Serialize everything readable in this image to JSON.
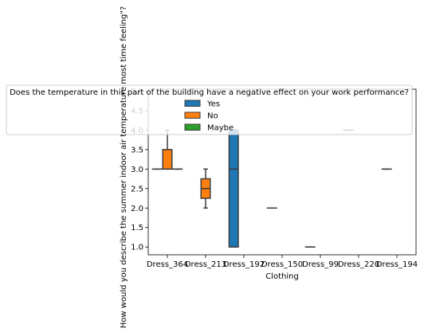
{
  "chart_data": {
    "type": "box",
    "title": "",
    "xlabel": "Clothing",
    "ylabel": "How would you describe the summer indoor air temperature most time feeling\"?",
    "ylim": [
      0.8,
      5.05
    ],
    "yticks": [
      1.0,
      1.5,
      2.0,
      2.5,
      3.0,
      3.5,
      4.0,
      4.5,
      5.0
    ],
    "ytick_labels": [
      "1.0",
      "1.5",
      "2.0",
      "2.5",
      "3.0",
      "3.5",
      "4.0",
      "4.5",
      "5.0"
    ],
    "categories": [
      "Dress_364",
      "Dress_213",
      "Dress_192",
      "Dress_150",
      "Dress_99",
      "Dress_220",
      "Dress_194"
    ],
    "legend": {
      "title": "Does the temperature in this part of the building have a negative effect on your work performance?",
      "placement": "upper-center",
      "entries": [
        "Yes",
        "No",
        "Maybe"
      ]
    },
    "series": [
      {
        "name": "Yes",
        "color": "#1f77b4"
      },
      {
        "name": "No",
        "color": "#ff7f0e"
      },
      {
        "name": "Maybe",
        "color": "#2ca02c"
      }
    ],
    "boxes": [
      {
        "category": "Dress_364",
        "series": "Yes",
        "min": 3.0,
        "q1": 3.0,
        "median": 3.0,
        "q3": 3.0,
        "max": 3.0
      },
      {
        "category": "Dress_364",
        "series": "No",
        "min": 3.0,
        "q1": 3.0,
        "median": 3.0,
        "q3": 3.5,
        "max": 4.0
      },
      {
        "category": "Dress_364",
        "series": "Maybe",
        "min": 3.0,
        "q1": 3.0,
        "median": 3.0,
        "q3": 3.0,
        "max": 3.0
      },
      {
        "category": "Dress_213",
        "series": "No",
        "min": 2.0,
        "q1": 2.25,
        "median": 2.5,
        "q3": 2.75,
        "max": 3.0
      },
      {
        "category": "Dress_192",
        "series": "Yes",
        "min": 1.0,
        "q1": 1.0,
        "median": 3.0,
        "q3": 4.0,
        "max": 4.0
      },
      {
        "category": "Dress_150",
        "series": "Yes",
        "min": 2.0,
        "q1": 2.0,
        "median": 2.0,
        "q3": 2.0,
        "max": 2.0
      },
      {
        "category": "Dress_99",
        "series": "Yes",
        "min": 1.0,
        "q1": 1.0,
        "median": 1.0,
        "q3": 1.0,
        "max": 1.0
      },
      {
        "category": "Dress_220",
        "series": "Yes",
        "min": 4.0,
        "q1": 4.0,
        "median": 4.0,
        "q3": 4.0,
        "max": 4.0
      },
      {
        "category": "Dress_194",
        "series": "Yes",
        "min": 3.0,
        "q1": 3.0,
        "median": 3.0,
        "q3": 3.0,
        "max": 3.0
      }
    ]
  }
}
